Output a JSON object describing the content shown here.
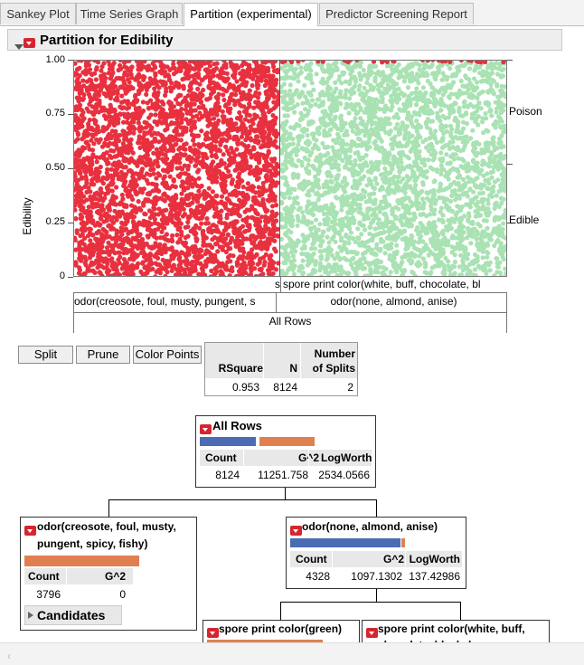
{
  "tabs": [
    {
      "label": "Sankey Plot"
    },
    {
      "label": "Time Series Graph"
    },
    {
      "label": "Partition (experimental)"
    },
    {
      "label": "Predictor Screening Report"
    }
  ],
  "outline_title": "Partition for Edibility",
  "chart_data": {
    "type": "scatter",
    "ylabel": "Edibility",
    "yticks": [
      "1.00",
      "0.75",
      "0.50",
      "0.25",
      "0"
    ],
    "ylim": [
      0,
      1
    ],
    "right_labels": [
      "Poison",
      "Edible"
    ],
    "left_leaf_label": "odor(creosote, foul, musty, pungent, s",
    "right_leaf_label": "odor(none, almond, anise)",
    "right_sub_label": "spore print color(white, buff, chocolate, bl",
    "left_sub_label": "s",
    "bottom_label": "All Rows",
    "colors": {
      "poison": "#e8303f",
      "edible": "#a9e2b3"
    }
  },
  "buttons": {
    "split": "Split",
    "prune": "Prune",
    "color_points": "Color Points"
  },
  "summary": {
    "headers": [
      "RSquare",
      "N",
      "Number of Splits"
    ],
    "values": [
      "0.953",
      "8124",
      "2"
    ]
  },
  "nodes": {
    "root": {
      "title": "All Rows",
      "headers": [
        "Count",
        "G^2",
        "LogWorth"
      ],
      "values": [
        "8124",
        "11251.758",
        "2534.0566"
      ]
    },
    "left": {
      "title_line1": "odor(creosote, foul, musty,",
      "title_line2": "pungent, spicy, fishy)",
      "headers": [
        "Count",
        "G^2"
      ],
      "values": [
        "3796",
        "0"
      ],
      "candidates": "Candidates"
    },
    "right": {
      "title": "odor(none, almond, anise)",
      "headers": [
        "Count",
        "G^2",
        "LogWorth"
      ],
      "values": [
        "4328",
        "1097.1302",
        "137.42986"
      ]
    },
    "sub_left": {
      "title": "spore print color(green)"
    },
    "sub_right": {
      "title_line1": "spore print color(white, buff,",
      "title_line2": "chocolate, black, brown,"
    }
  }
}
